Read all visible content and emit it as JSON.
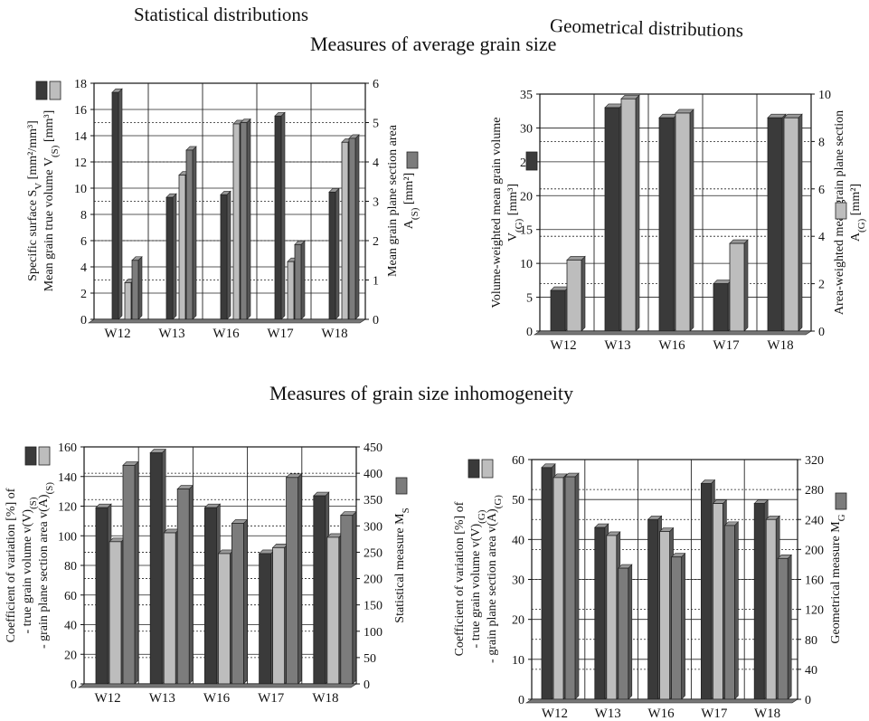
{
  "headings": {
    "statistical": "Statistical distributions",
    "geometrical": "Geometrical distributions",
    "average": "Measures of average grain size",
    "inhomogeneity": "Measures of grain size inhomogeneity"
  },
  "colors": {
    "dark": "#3a3a3a",
    "medium": "#7c7c7c",
    "light": "#bdbdbd",
    "axis": "#111111"
  },
  "chart_data": [
    {
      "type": "bar",
      "categories": [
        "W12",
        "W13",
        "W16",
        "W17",
        "W18"
      ],
      "left_axis": {
        "label_lines": [
          "Specific surface S_V [mm²/mm³]",
          "Mean grain true volume V_(S) [mm³]"
        ],
        "ylim": [
          0,
          18
        ],
        "ticks": [
          "0",
          "2",
          "4",
          "6",
          "8",
          "10",
          "12",
          "14",
          "16",
          "18"
        ]
      },
      "right_axis": {
        "label_lines": [
          "Mean grain plane section area",
          "A_(S) [mm²]"
        ],
        "ylim": [
          0,
          6
        ],
        "ticks": [
          "0",
          "1",
          "2",
          "3",
          "4",
          "5",
          "6"
        ]
      },
      "series": [
        {
          "axis": "left",
          "color": "dark",
          "values": [
            17.3,
            9.3,
            9.5,
            15.5,
            9.7
          ]
        },
        {
          "axis": "left",
          "color": "light",
          "values": [
            2.8,
            11.0,
            14.9,
            4.4,
            13.5
          ]
        },
        {
          "axis": "right",
          "color": "medium",
          "values": [
            1.5,
            4.3,
            5.0,
            1.9,
            4.6
          ]
        }
      ],
      "grid": true
    },
    {
      "type": "bar",
      "categories": [
        "W12",
        "W13",
        "W16",
        "W17",
        "W18"
      ],
      "left_axis": {
        "label_lines": [
          "Volume-weighted mean grain volume",
          "V_(G) [mm³]"
        ],
        "ylim": [
          0,
          35
        ],
        "ticks": [
          "0",
          "5",
          "10",
          "15",
          "20",
          "25",
          "30",
          "35"
        ]
      },
      "right_axis": {
        "label_lines": [
          "Area-weighted mean grain plane section",
          "A_(G) [mm²]"
        ],
        "ylim": [
          0,
          10
        ],
        "ticks": [
          "0",
          "2",
          "4",
          "6",
          "8",
          "10"
        ]
      },
      "series": [
        {
          "axis": "left",
          "color": "dark",
          "values": [
            6.0,
            33.0,
            31.5,
            7.0,
            31.5
          ]
        },
        {
          "axis": "right",
          "color": "light",
          "values": [
            3.0,
            9.8,
            9.2,
            3.7,
            9.0
          ]
        }
      ],
      "grid": true
    },
    {
      "type": "bar",
      "categories": [
        "W12",
        "W13",
        "W16",
        "W17",
        "W18"
      ],
      "left_axis": {
        "label_lines": [
          "Coefficient of variation [%] of",
          "- true grain volume v(V)_(S)",
          "- grain plane section area v(A)_(S)"
        ],
        "ylim": [
          0,
          160
        ],
        "ticks": [
          "0",
          "20",
          "40",
          "60",
          "80",
          "100",
          "120",
          "140",
          "160"
        ]
      },
      "right_axis": {
        "label_lines": [
          "Statistical measure M_S"
        ],
        "ylim": [
          0,
          450
        ],
        "ticks": [
          "0",
          "50",
          "100",
          "150",
          "200",
          "250",
          "300",
          "350",
          "400",
          "450"
        ]
      },
      "series": [
        {
          "axis": "left",
          "color": "dark",
          "values": [
            119,
            156,
            119,
            88,
            127
          ]
        },
        {
          "axis": "left",
          "color": "light",
          "values": [
            96,
            102,
            88,
            92,
            99
          ]
        },
        {
          "axis": "right",
          "color": "medium",
          "values": [
            415,
            370,
            305,
            392,
            320
          ]
        }
      ],
      "grid": true
    },
    {
      "type": "bar",
      "categories": [
        "W12",
        "W13",
        "W16",
        "W17",
        "W18"
      ],
      "left_axis": {
        "label_lines": [
          "Coefficient of variation [%] of",
          "- true grain volume v(V)_(G)",
          "- grain plane section area v(A)_(G)"
        ],
        "ylim": [
          0,
          60
        ],
        "ticks": [
          "0",
          "10",
          "20",
          "30",
          "40",
          "50",
          "60"
        ]
      },
      "right_axis": {
        "label_lines": [
          "Geometrical measure M_G"
        ],
        "ylim": [
          0,
          320
        ],
        "ticks": [
          "0",
          "40",
          "80",
          "120",
          "160",
          "200",
          "240",
          "280",
          "320"
        ]
      },
      "series": [
        {
          "axis": "left",
          "color": "dark",
          "values": [
            58,
            43,
            45,
            54,
            49
          ]
        },
        {
          "axis": "left",
          "color": "light",
          "values": [
            55.5,
            41,
            42,
            49,
            45
          ]
        },
        {
          "axis": "right",
          "color": "medium",
          "values": [
            297,
            175,
            190,
            232,
            188
          ]
        }
      ],
      "grid": true
    }
  ]
}
